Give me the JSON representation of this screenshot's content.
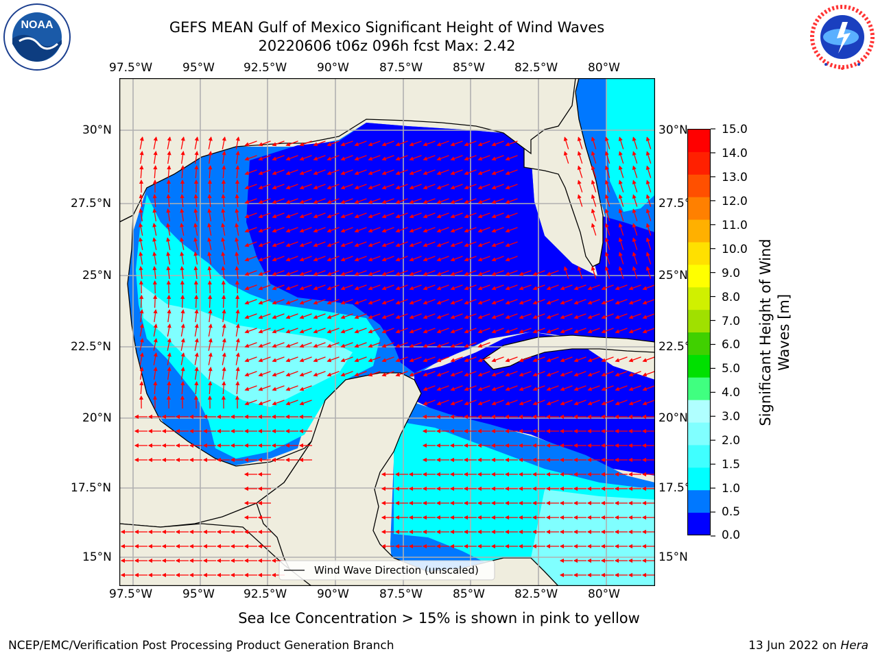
{
  "title_line1": "GEFS MEAN Gulf of Mexico Significant Height of Wind Waves",
  "title_line2": "20220606 t06z 096h fcst   Max: 2.42",
  "noaa_logo": {
    "text": "NOAA",
    "ring_text": "NATIONAL OCEANIC AND ATMOSPHERIC ADMINISTRATION · U.S. DEPARTMENT OF COMMERCE"
  },
  "nws_logo": {
    "ring_text": "NATIONAL WEATHER SERVICE"
  },
  "lon_labels": [
    "97.5°W",
    "95°W",
    "92.5°W",
    "90°W",
    "87.5°W",
    "85°W",
    "82.5°W",
    "80°W"
  ],
  "lat_labels": [
    "30°N",
    "27.5°N",
    "25°N",
    "22.5°N",
    "20°N",
    "17.5°N",
    "15°N"
  ],
  "legend_text": "Wind Wave Direction (unscaled)",
  "colorbar": {
    "title_line1": "Significant Height of Wind",
    "title_line2": "Waves [m]",
    "tick_labels": [
      "15.0",
      "14.0",
      "13.0",
      "12.0",
      "11.0",
      "10.0",
      "9.0",
      "8.0",
      "7.0",
      "6.0",
      "5.0",
      "4.0",
      "3.0",
      "2.0",
      "1.5",
      "1.0",
      "0.5",
      "0.0"
    ],
    "colors": [
      "#0000ff",
      "#0078ff",
      "#00ffff",
      "#40ffff",
      "#80ffff",
      "#b0ffff",
      "#40ff80",
      "#00e000",
      "#40d000",
      "#a0e000",
      "#d0f000",
      "#ffff00",
      "#ffe000",
      "#ffb000",
      "#ff8000",
      "#ff5000",
      "#ff2000",
      "#ff0000"
    ]
  },
  "colors": {
    "land": "#efedde",
    "deep": "#0000ff",
    "mid": "#0078ff",
    "shallow": "#00ffff",
    "light": "#80ffff",
    "arrow": "#ff0000",
    "grid": "#b0b0b0"
  },
  "sea_ice_note": "Sea Ice Concentration > 15% is shown in pink to yellow",
  "footer_left": "NCEP/EMC/Verification Post Processing Product Generation Branch",
  "footer_date": "13 Jun 2022 on ",
  "footer_machine": "Hera"
}
